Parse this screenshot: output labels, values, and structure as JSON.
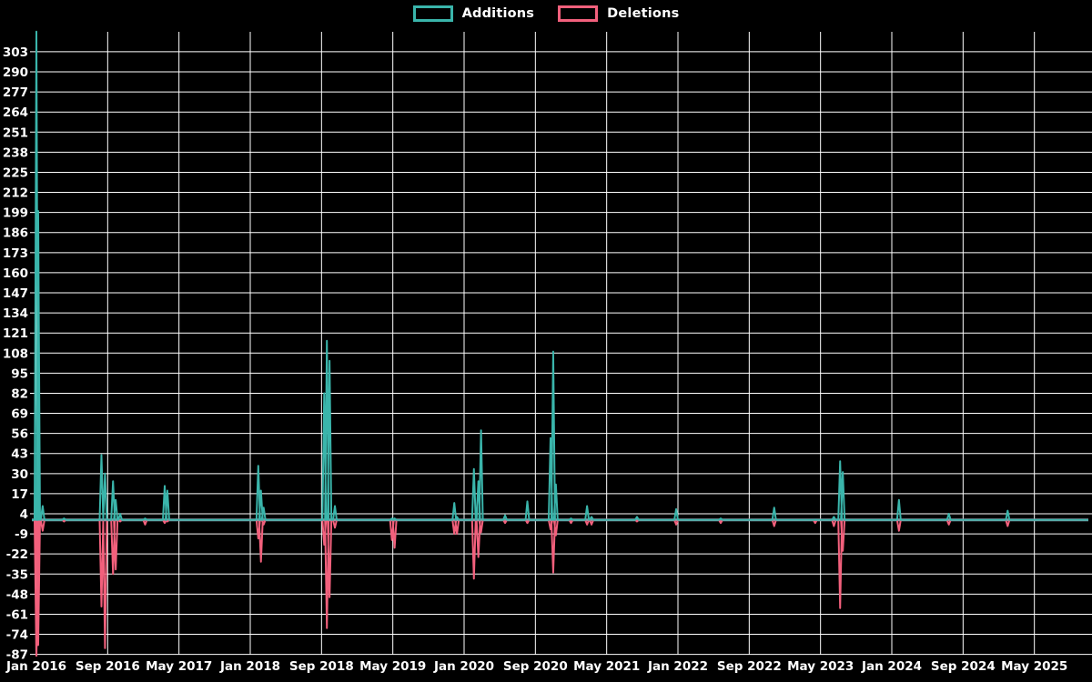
{
  "chart_data": {
    "type": "line",
    "title": "",
    "background": "#000000",
    "grid": {
      "on": true,
      "color": "#ffffff"
    },
    "zero_line_color": "#7f9dad",
    "legend_position": "top-center",
    "series": [
      {
        "name": "Additions",
        "color": "#3ab5ab"
      },
      {
        "name": "Deletions",
        "color": "#f2607c"
      }
    ],
    "x_axis": {
      "tick_labels": [
        "Jan 2016",
        "Sep 2016",
        "May 2017",
        "Jan 2018",
        "Sep 2018",
        "May 2019",
        "Jan 2020",
        "Sep 2020",
        "May 2021",
        "Jan 2022",
        "Sep 2022",
        "May 2023",
        "Jan 2024",
        "Sep 2024",
        "May 2025"
      ],
      "tick_month_offsets": [
        0,
        8,
        16,
        24,
        32,
        40,
        48,
        56,
        64,
        72,
        80,
        88,
        96,
        104,
        112
      ],
      "months_span": 118
    },
    "y_axis": {
      "tick_values": [
        303,
        290,
        277,
        264,
        251,
        238,
        225,
        212,
        199,
        186,
        173,
        160,
        147,
        134,
        121,
        108,
        95,
        82,
        69,
        56,
        43,
        30,
        17,
        4,
        -9,
        -22,
        -35,
        -48,
        -61,
        -74,
        -87
      ],
      "min": -91,
      "max": 316,
      "tick_step": 13
    },
    "points_format": [
      "month_offset_from_jan_2016",
      "additions",
      "deletions"
    ],
    "points": [
      [
        0.0,
        316,
        -91
      ],
      [
        0.2,
        200,
        -81
      ],
      [
        0.7,
        9,
        -7
      ],
      [
        3.1,
        1,
        -1
      ],
      [
        7.3,
        42,
        -56
      ],
      [
        7.7,
        30,
        -83
      ],
      [
        8.6,
        25,
        -35
      ],
      [
        8.9,
        13,
        -32
      ],
      [
        9.4,
        4,
        -1
      ],
      [
        12.2,
        1,
        -3
      ],
      [
        14.4,
        22,
        -2
      ],
      [
        14.7,
        19,
        -1
      ],
      [
        24.9,
        35,
        -12
      ],
      [
        25.2,
        19,
        -27
      ],
      [
        25.5,
        8,
        -3
      ],
      [
        32.3,
        82,
        -16
      ],
      [
        32.6,
        116,
        -70
      ],
      [
        32.9,
        103,
        -50
      ],
      [
        33.5,
        9,
        -5
      ],
      [
        39.9,
        1,
        -13
      ],
      [
        40.2,
        1,
        -18
      ],
      [
        46.9,
        11,
        -9
      ],
      [
        47.2,
        2,
        -9
      ],
      [
        49.1,
        33,
        -38
      ],
      [
        49.6,
        25,
        -24
      ],
      [
        49.9,
        58,
        -8
      ],
      [
        52.6,
        3,
        -2
      ],
      [
        55.1,
        12,
        -2
      ],
      [
        57.7,
        53,
        -6
      ],
      [
        58.0,
        109,
        -34
      ],
      [
        58.3,
        23,
        -10
      ],
      [
        60.0,
        1,
        -2
      ],
      [
        61.8,
        9,
        -3
      ],
      [
        62.3,
        2,
        -3
      ],
      [
        67.4,
        2,
        -1
      ],
      [
        71.8,
        7,
        -3
      ],
      [
        76.8,
        1,
        -2
      ],
      [
        82.8,
        8,
        -4
      ],
      [
        87.4,
        0,
        -2
      ],
      [
        89.5,
        2,
        -4
      ],
      [
        90.2,
        38,
        -57
      ],
      [
        90.5,
        31,
        -20
      ],
      [
        96.8,
        13,
        -7
      ],
      [
        102.4,
        4,
        -3
      ],
      [
        109.0,
        6,
        -4
      ]
    ]
  }
}
